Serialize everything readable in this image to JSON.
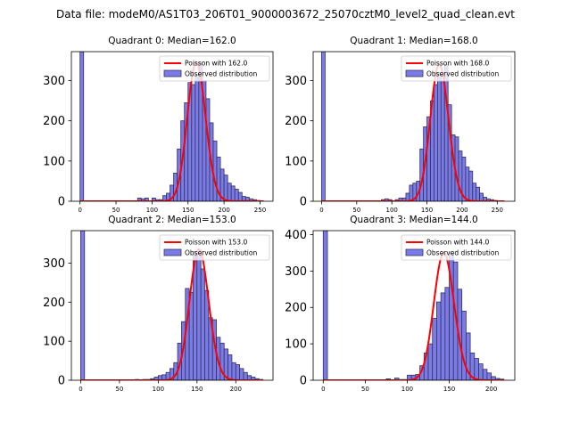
{
  "figure": {
    "suptitle": "Data file: modeM0/AS1T03_206T01_9000003672_25070cztM0_level2_quad_clean.evt"
  },
  "legend_labels": {
    "observed": "Observed distribution"
  },
  "colors": {
    "bar_fill": "#7b7be8",
    "bar_edge": "#33335a",
    "poisson_line": "#ff0000"
  },
  "chart_data": [
    {
      "type": "bar",
      "title": "Quadrant 0: Median=162.0",
      "poisson_label": "Poisson with 162.0",
      "median": 162.0,
      "xlim": [
        -12,
        268
      ],
      "ylim": [
        0,
        372
      ],
      "xticks": [
        0,
        50,
        100,
        150,
        200,
        250
      ],
      "yticks": [
        0,
        100,
        200,
        300
      ],
      "bin_width": 5,
      "spike_value": 372,
      "bins_start": [
        80,
        85,
        90,
        95,
        100,
        105,
        110,
        115,
        120,
        125,
        130,
        135,
        140,
        145,
        150,
        155,
        160,
        165,
        170,
        175,
        180,
        185,
        190,
        195,
        200,
        205,
        210,
        215,
        220,
        225,
        230,
        235,
        240,
        245,
        250
      ],
      "values": [
        8,
        6,
        8,
        0,
        8,
        4,
        4,
        14,
        20,
        40,
        70,
        130,
        200,
        245,
        295,
        290,
        315,
        345,
        300,
        255,
        195,
        150,
        110,
        80,
        65,
        45,
        38,
        30,
        22,
        12,
        10,
        6,
        4,
        2,
        0
      ]
    },
    {
      "type": "bar",
      "title": "Quadrant 1: Median=168.0",
      "poisson_label": "Poisson with 168.0",
      "median": 168.0,
      "xlim": [
        -12,
        275
      ],
      "ylim": [
        0,
        372
      ],
      "xticks": [
        0,
        50,
        100,
        150,
        200,
        250
      ],
      "yticks": [
        0,
        100,
        200,
        300
      ],
      "bin_width": 5,
      "spike_value": 372,
      "bins_start": [
        85,
        90,
        95,
        100,
        105,
        110,
        115,
        120,
        125,
        130,
        135,
        140,
        145,
        150,
        155,
        160,
        165,
        170,
        175,
        180,
        185,
        190,
        195,
        200,
        205,
        210,
        215,
        220,
        225,
        230,
        235,
        240,
        245,
        250,
        255
      ],
      "values": [
        4,
        6,
        4,
        0,
        4,
        8,
        8,
        20,
        40,
        45,
        50,
        130,
        185,
        210,
        250,
        290,
        320,
        300,
        340,
        240,
        165,
        160,
        125,
        110,
        85,
        75,
        45,
        35,
        20,
        10,
        6,
        4,
        2,
        0,
        0
      ]
    },
    {
      "type": "bar",
      "title": "Quadrant 2: Median=153.0",
      "poisson_label": "Poisson with 153.0",
      "median": 153.0,
      "xlim": [
        -12,
        248
      ],
      "ylim": [
        0,
        383
      ],
      "xticks": [
        0,
        50,
        100,
        150,
        200
      ],
      "yticks": [
        0,
        100,
        200,
        300
      ],
      "bin_width": 5,
      "spike_value": 383,
      "bins_start": [
        70,
        75,
        80,
        85,
        90,
        95,
        100,
        105,
        110,
        115,
        120,
        125,
        130,
        135,
        140,
        145,
        150,
        155,
        160,
        165,
        170,
        175,
        180,
        185,
        190,
        195,
        200,
        205,
        210,
        215,
        220,
        225,
        230
      ],
      "values": [
        2,
        0,
        2,
        2,
        4,
        8,
        12,
        14,
        20,
        30,
        45,
        95,
        150,
        235,
        225,
        330,
        335,
        285,
        230,
        160,
        155,
        110,
        95,
        80,
        65,
        45,
        40,
        30,
        20,
        12,
        8,
        4,
        2
      ]
    },
    {
      "type": "bar",
      "title": "Quadrant 3: Median=144.0",
      "poisson_label": "Poisson with 144.0",
      "median": 144.0,
      "xlim": [
        -12,
        228
      ],
      "ylim": [
        0,
        411
      ],
      "xticks": [
        0,
        50,
        100,
        150,
        200
      ],
      "yticks": [
        0,
        100,
        200,
        300,
        400
      ],
      "bin_width": 5,
      "spike_value": 411,
      "bins_start": [
        75,
        80,
        85,
        90,
        95,
        100,
        105,
        110,
        115,
        120,
        125,
        130,
        135,
        140,
        145,
        150,
        155,
        160,
        165,
        170,
        175,
        180,
        185,
        190,
        195,
        200,
        205,
        210
      ],
      "values": [
        4,
        0,
        6,
        2,
        2,
        14,
        14,
        16,
        40,
        75,
        100,
        170,
        215,
        240,
        255,
        350,
        325,
        250,
        190,
        130,
        75,
        60,
        45,
        30,
        20,
        10,
        5,
        3
      ]
    }
  ]
}
